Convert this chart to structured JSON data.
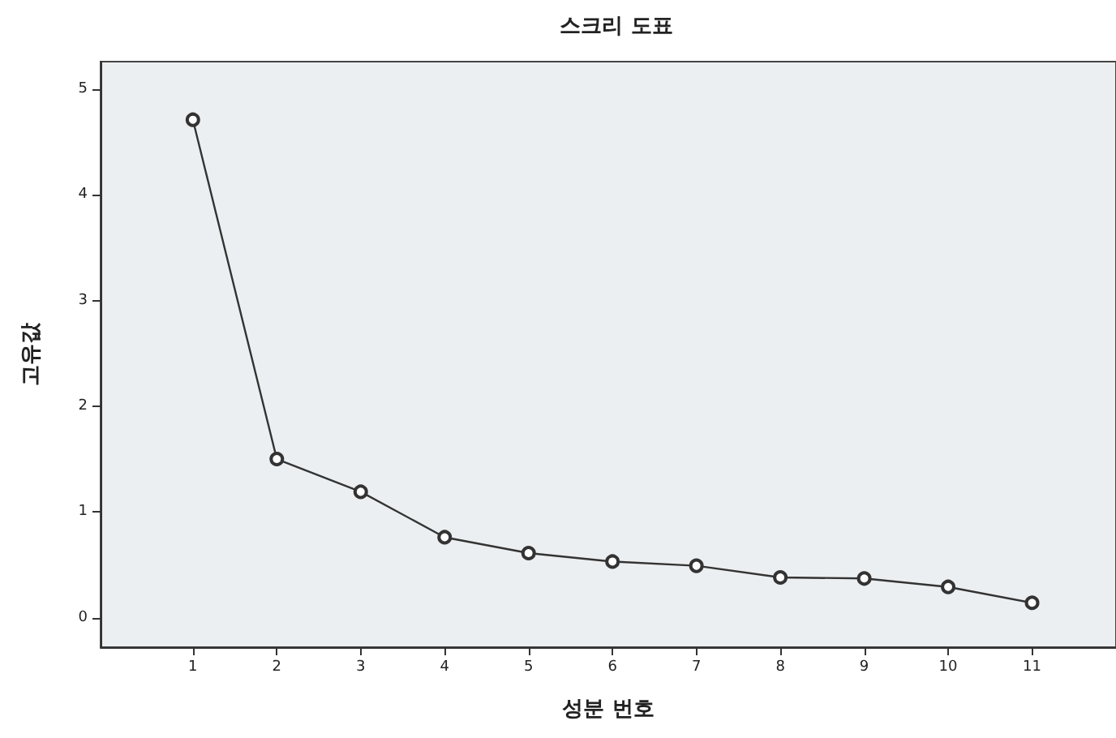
{
  "chart_data": {
    "type": "line",
    "title": "스크리 도표",
    "xlabel": "성분 번호",
    "ylabel": "고유값",
    "x": [
      1,
      2,
      3,
      4,
      5,
      6,
      7,
      8,
      9,
      10,
      11
    ],
    "series": [
      {
        "color": "#333333",
        "values": [
          4.71,
          1.5,
          1.19,
          0.76,
          0.61,
          0.53,
          0.49,
          0.38,
          0.37,
          0.29,
          0.14
        ]
      }
    ],
    "xlim": [
      -0.1,
      12
    ],
    "xticks": [
      1,
      2,
      3,
      4,
      5,
      6,
      7,
      8,
      9,
      10,
      11
    ],
    "ylim": [
      -0.28,
      5.26
    ],
    "yticks": [
      0,
      1,
      2,
      3,
      4,
      5
    ],
    "grid": false,
    "marker": "circle",
    "line_style": "solid"
  }
}
